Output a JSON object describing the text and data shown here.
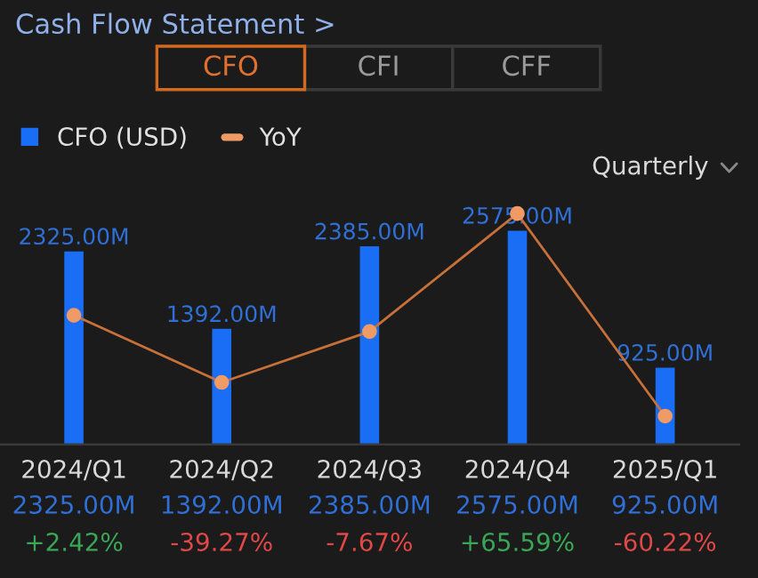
{
  "chart_data": {
    "type": "bar",
    "title": "Cash Flow Statement >",
    "annotations": [
      "CFO",
      "CFI",
      "CFF",
      "Quarterly"
    ],
    "categories": [
      "2024/Q1",
      "2024/Q2",
      "2024/Q3",
      "2024/Q4",
      "2025/Q1"
    ],
    "series": [
      {
        "name": "CFO (USD)",
        "color": "#1a6ef5",
        "values": [
          2325,
          1392,
          2385,
          2575,
          925
        ],
        "value_labels": [
          "2325.00M",
          "1392.00M",
          "2385.00M",
          "2575.00M",
          "925.00M"
        ]
      },
      {
        "name": "YoY",
        "type": "line",
        "axis": "y2",
        "color": "#c8703a",
        "values": [
          2.42,
          -39.27,
          -7.67,
          65.59,
          -60.22
        ],
        "value_labels": [
          "+2.42%",
          "-39.27%",
          "-7.67%",
          "+65.59%",
          "-60.22%"
        ]
      }
    ],
    "tick_labels": "x",
    "data_labels": true,
    "legend": "top left",
    "marker": "circle",
    "line_style": "solid",
    "grid": false
  }
}
